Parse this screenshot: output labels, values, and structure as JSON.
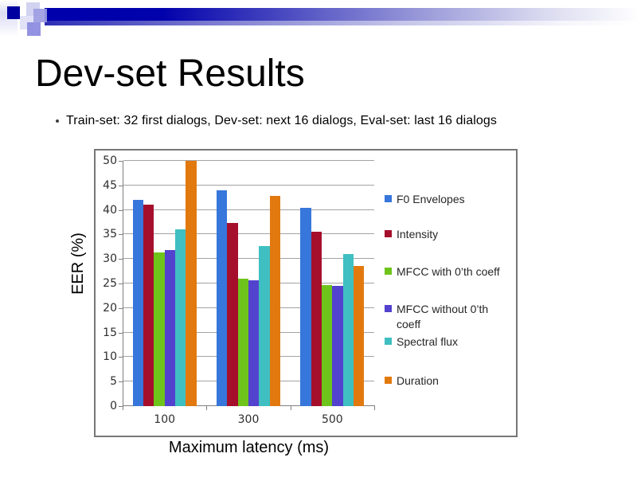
{
  "slide": {
    "title": "Dev-set Results",
    "bullet": "Train-set: 32 first dialogs, Dev-set: next 16 dialogs, Eval-set: last 16 dialogs",
    "theme": {
      "accent_blue": "#0000AC",
      "frame_gray": "#777777"
    }
  },
  "chart_data": {
    "type": "bar",
    "title": "",
    "xlabel": "Maximum latency (ms)",
    "ylabel": "EER (%)",
    "categories": [
      "100",
      "300",
      "500"
    ],
    "series": [
      {
        "name": "F0 Envelopes",
        "color": "#3776DB",
        "values": [
          42.1,
          44.0,
          40.4
        ]
      },
      {
        "name": "Intensity",
        "color": "#A50F2B",
        "values": [
          41.0,
          37.4,
          35.5
        ]
      },
      {
        "name": "MFCC with 0’th coeff",
        "color": "#6FC41C",
        "values": [
          31.3,
          26.0,
          24.7
        ]
      },
      {
        "name": "MFCC without 0’th coeff",
        "color": "#5242CE",
        "values": [
          31.9,
          25.7,
          24.5
        ]
      },
      {
        "name": "Spectral flux",
        "color": "#3FBFC1",
        "values": [
          36.1,
          32.6,
          31.0
        ]
      },
      {
        "name": "Duration",
        "color": "#E2790F",
        "values": [
          50.0,
          42.8,
          28.5
        ]
      }
    ],
    "ylim": [
      0,
      50
    ],
    "yticks": [
      0,
      5,
      10,
      15,
      20,
      25,
      30,
      35,
      40,
      45,
      50
    ],
    "grid": true,
    "legend_position": "right-inside"
  }
}
